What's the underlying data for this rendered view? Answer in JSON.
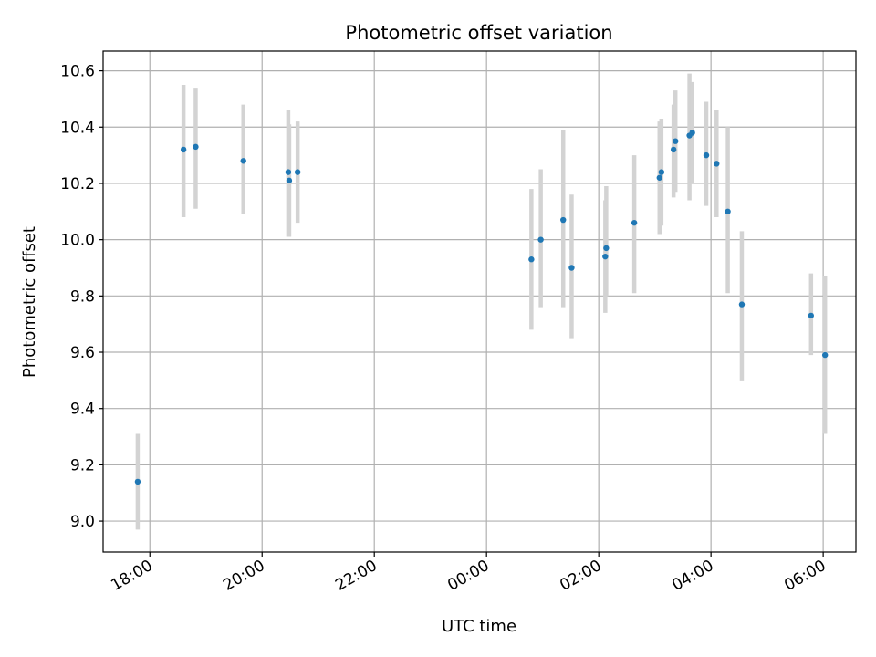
{
  "chart_data": {
    "type": "scatter",
    "title": "Photometric offset variation",
    "xlabel": "UTC time",
    "ylabel": "Photometric offset",
    "x_tick_labels": [
      "18:00",
      "20:00",
      "22:00",
      "00:00",
      "02:00",
      "04:00",
      "06:00"
    ],
    "y_tick_labels": [
      "9.0",
      "9.2",
      "9.4",
      "9.6",
      "9.8",
      "10.0",
      "10.2",
      "10.4",
      "10.6"
    ],
    "ylim": [
      8.89,
      10.67
    ],
    "xlim": [
      "17:10",
      "06:35"
    ],
    "grid": true,
    "colors": {
      "marker": "#1f77b4",
      "error_bar": "#d3d3d3",
      "grid": "#b0b0b0"
    },
    "series": [
      {
        "points": [
          {
            "x": "17:47",
            "y": 9.14,
            "err_low": 8.97,
            "err_high": 9.31
          },
          {
            "x": "18:36",
            "y": 10.32,
            "err_low": 10.08,
            "err_high": 10.55
          },
          {
            "x": "18:49",
            "y": 10.33,
            "err_low": 10.11,
            "err_high": 10.54
          },
          {
            "x": "19:40",
            "y": 10.28,
            "err_low": 10.09,
            "err_high": 10.48
          },
          {
            "x": "20:28",
            "y": 10.24,
            "err_low": 10.01,
            "err_high": 10.46
          },
          {
            "x": "20:29",
            "y": 10.21,
            "err_low": 10.01,
            "err_high": 10.41
          },
          {
            "x": "20:38",
            "y": 10.24,
            "err_low": 10.06,
            "err_high": 10.42
          },
          {
            "x": "00:48",
            "y": 9.93,
            "err_low": 9.68,
            "err_high": 10.18
          },
          {
            "x": "00:58",
            "y": 10.0,
            "err_low": 9.76,
            "err_high": 10.25
          },
          {
            "x": "01:22",
            "y": 10.07,
            "err_low": 9.76,
            "err_high": 10.39
          },
          {
            "x": "01:31",
            "y": 9.9,
            "err_low": 9.65,
            "err_high": 10.16
          },
          {
            "x": "02:07",
            "y": 9.94,
            "err_low": 9.74,
            "err_high": 10.14
          },
          {
            "x": "02:08",
            "y": 9.97,
            "err_low": 9.8,
            "err_high": 10.19
          },
          {
            "x": "02:38",
            "y": 10.06,
            "err_low": 9.81,
            "err_high": 10.3
          },
          {
            "x": "03:05",
            "y": 10.22,
            "err_low": 10.02,
            "err_high": 10.42
          },
          {
            "x": "03:07",
            "y": 10.24,
            "err_low": 10.05,
            "err_high": 10.43
          },
          {
            "x": "03:20",
            "y": 10.32,
            "err_low": 10.15,
            "err_high": 10.48
          },
          {
            "x": "03:22",
            "y": 10.35,
            "err_low": 10.17,
            "err_high": 10.53
          },
          {
            "x": "03:37",
            "y": 10.37,
            "err_low": 10.14,
            "err_high": 10.59
          },
          {
            "x": "03:40",
            "y": 10.38,
            "err_low": 10.2,
            "err_high": 10.56
          },
          {
            "x": "03:55",
            "y": 10.3,
            "err_low": 10.12,
            "err_high": 10.49
          },
          {
            "x": "04:06",
            "y": 10.27,
            "err_low": 10.08,
            "err_high": 10.46
          },
          {
            "x": "04:18",
            "y": 10.1,
            "err_low": 9.81,
            "err_high": 10.4
          },
          {
            "x": "04:33",
            "y": 9.77,
            "err_low": 9.5,
            "err_high": 10.03
          },
          {
            "x": "05:47",
            "y": 9.73,
            "err_low": 9.59,
            "err_high": 9.88
          },
          {
            "x": "06:02",
            "y": 9.59,
            "err_low": 9.31,
            "err_high": 9.87
          }
        ]
      }
    ]
  }
}
